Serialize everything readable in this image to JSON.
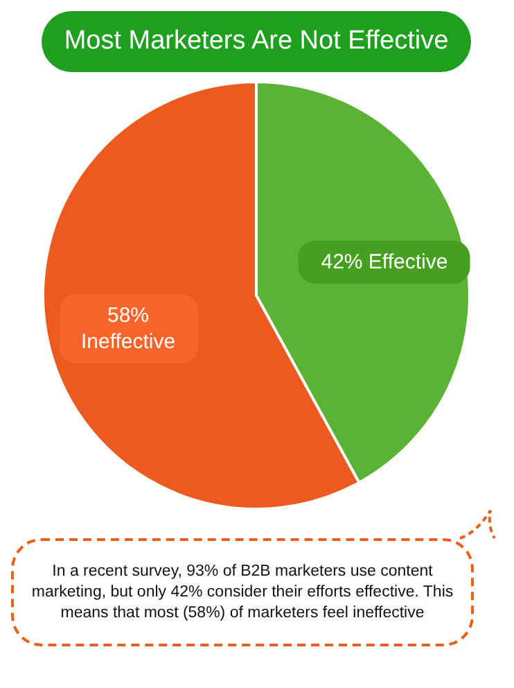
{
  "chart_data": {
    "type": "pie",
    "title": "Most Marketers Are Not Effective",
    "categories": [
      "Effective",
      "Ineffective"
    ],
    "values": [
      42,
      58
    ],
    "value_labels": [
      "42%",
      "58%"
    ],
    "colors": [
      "#5bb336",
      "#ec5a1f"
    ],
    "annotations": [
      "In a recent survey, 93% of B2B marketers use content marketing, but only 42% consider their efforts effective. This means that most (58%) of marketers feel ineffective"
    ]
  }
}
